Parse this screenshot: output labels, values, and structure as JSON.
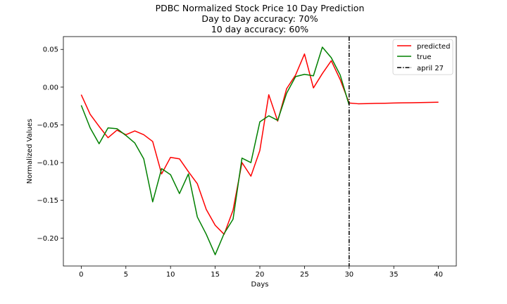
{
  "chart_data": {
    "type": "line",
    "title": [
      "PDBC Normalized Stock Price 10 Day Prediction",
      "Day to Day accuracy: 70%",
      "10 day accuracy: 60%"
    ],
    "xlabel": "Days",
    "ylabel": "Normalized Values",
    "xlim": [
      -2,
      42
    ],
    "ylim": [
      -0.237,
      0.067
    ],
    "xticks": [
      0,
      5,
      10,
      15,
      20,
      25,
      30,
      35,
      40
    ],
    "yticks": [
      0.05,
      0.0,
      -0.05,
      -0.1,
      -0.15,
      -0.2
    ],
    "ytick_labels": [
      "0.05",
      "0.00",
      "−0.05",
      "−0.10",
      "−0.15",
      "−0.20"
    ],
    "grid": false,
    "legend_position": "top-right",
    "series": [
      {
        "name": "predicted",
        "color": "#ff0000",
        "x": [
          0,
          1,
          2,
          3,
          4,
          5,
          6,
          7,
          8,
          9,
          10,
          11,
          12,
          13,
          14,
          15,
          16,
          17,
          18,
          19,
          20,
          21,
          22,
          23,
          24,
          25,
          26,
          27,
          28,
          29,
          30,
          31,
          32,
          33,
          34,
          35,
          36,
          37,
          38,
          39,
          40
        ],
        "values": [
          -0.01,
          -0.036,
          -0.052,
          -0.067,
          -0.057,
          -0.063,
          -0.058,
          -0.063,
          -0.072,
          -0.115,
          -0.093,
          -0.095,
          -0.112,
          -0.128,
          -0.162,
          -0.183,
          -0.195,
          -0.163,
          -0.1,
          -0.118,
          -0.084,
          -0.01,
          -0.045,
          -0.002,
          0.016,
          0.044,
          -0.001,
          0.018,
          0.035,
          0.01,
          -0.021,
          -0.022,
          -0.0218,
          -0.0215,
          -0.0213,
          -0.021,
          -0.0208,
          -0.0206,
          -0.0204,
          -0.0202,
          -0.02
        ]
      },
      {
        "name": "true",
        "color": "#008000",
        "x": [
          0,
          1,
          2,
          3,
          4,
          5,
          6,
          7,
          8,
          9,
          10,
          11,
          12,
          13,
          14,
          15,
          16,
          17,
          18,
          19,
          20,
          21,
          22,
          23,
          24,
          25,
          26,
          27,
          28,
          29,
          30
        ],
        "values": [
          -0.024,
          -0.054,
          -0.075,
          -0.054,
          -0.055,
          -0.064,
          -0.074,
          -0.095,
          -0.152,
          -0.108,
          -0.116,
          -0.141,
          -0.115,
          -0.172,
          -0.195,
          -0.222,
          -0.194,
          -0.175,
          -0.094,
          -0.1,
          -0.046,
          -0.038,
          -0.044,
          -0.008,
          0.014,
          0.017,
          0.015,
          0.053,
          0.039,
          0.016,
          -0.024
        ]
      }
    ],
    "vline": {
      "name": "april 27",
      "x": 30,
      "color": "#000000"
    }
  }
}
